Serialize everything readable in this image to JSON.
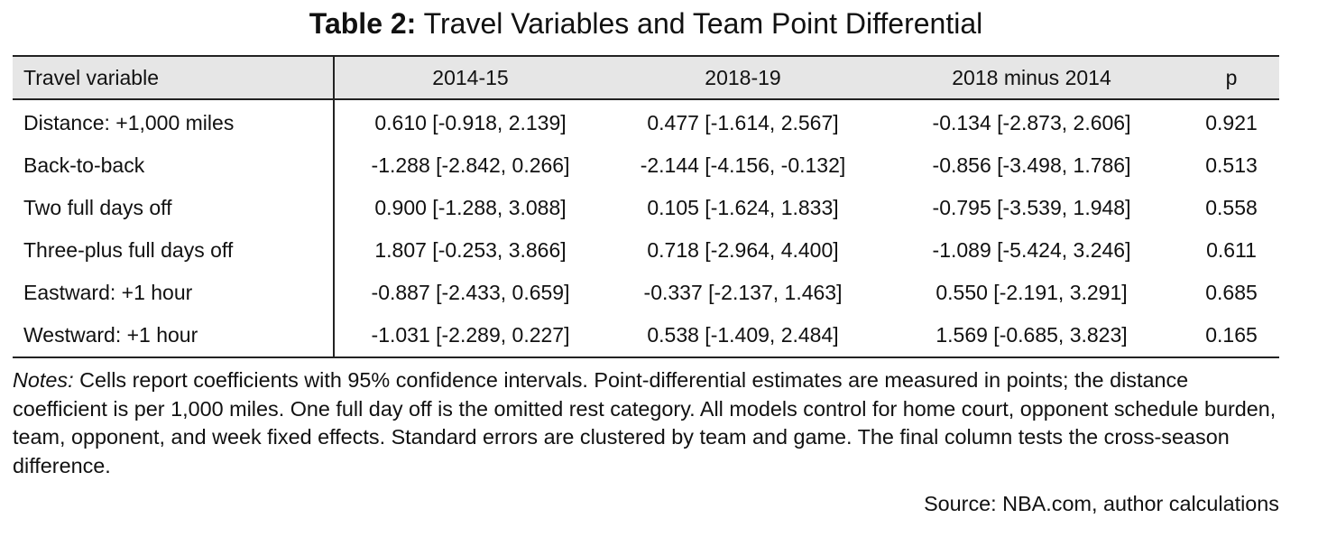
{
  "title": {
    "label": "Table 2:",
    "text": "Travel Variables and Team Point Differential"
  },
  "table": {
    "headers": [
      "Travel variable",
      "2014-15",
      "2018-19",
      "2018 minus 2014",
      "p"
    ],
    "rows": [
      [
        "Distance: +1,000 miles",
        "0.610 [-0.918, 2.139]",
        "0.477 [-1.614, 2.567]",
        "-0.134 [-2.873, 2.606]",
        "0.921"
      ],
      [
        "Back-to-back",
        "-1.288 [-2.842, 0.266]",
        "-2.144 [-4.156, -0.132]",
        "-0.856 [-3.498, 1.786]",
        "0.513"
      ],
      [
        "Two full days off",
        "0.900 [-1.288, 3.088]",
        "0.105 [-1.624, 1.833]",
        "-0.795 [-3.539, 1.948]",
        "0.558"
      ],
      [
        "Three-plus full days off",
        "1.807 [-0.253, 3.866]",
        "0.718 [-2.964, 4.400]",
        "-1.089 [-5.424, 3.246]",
        "0.611"
      ],
      [
        "Eastward: +1 hour",
        "-0.887 [-2.433, 0.659]",
        "-0.337 [-2.137, 1.463]",
        "0.550 [-2.191, 3.291]",
        "0.685"
      ],
      [
        "Westward: +1 hour",
        "-1.031 [-2.289, 0.227]",
        "0.538 [-1.409, 2.484]",
        "1.569 [-0.685, 3.823]",
        "0.165"
      ]
    ]
  },
  "notes": {
    "label": "Notes:",
    "text": " Cells report coefficients with 95% confidence intervals. Point-differential estimates are measured in points; the distance coefficient is per 1,000 miles. One full day off is the omitted rest category. All models control for home court, opponent schedule burden, team, opponent, and week fixed effects. Standard errors are clustered by team and game. The final column tests the cross-season difference."
  },
  "source": "Source: NBA.com, author calculations",
  "colors": {
    "header_background": "#e6e6e6",
    "rule": "#222222",
    "text": "#111111"
  }
}
